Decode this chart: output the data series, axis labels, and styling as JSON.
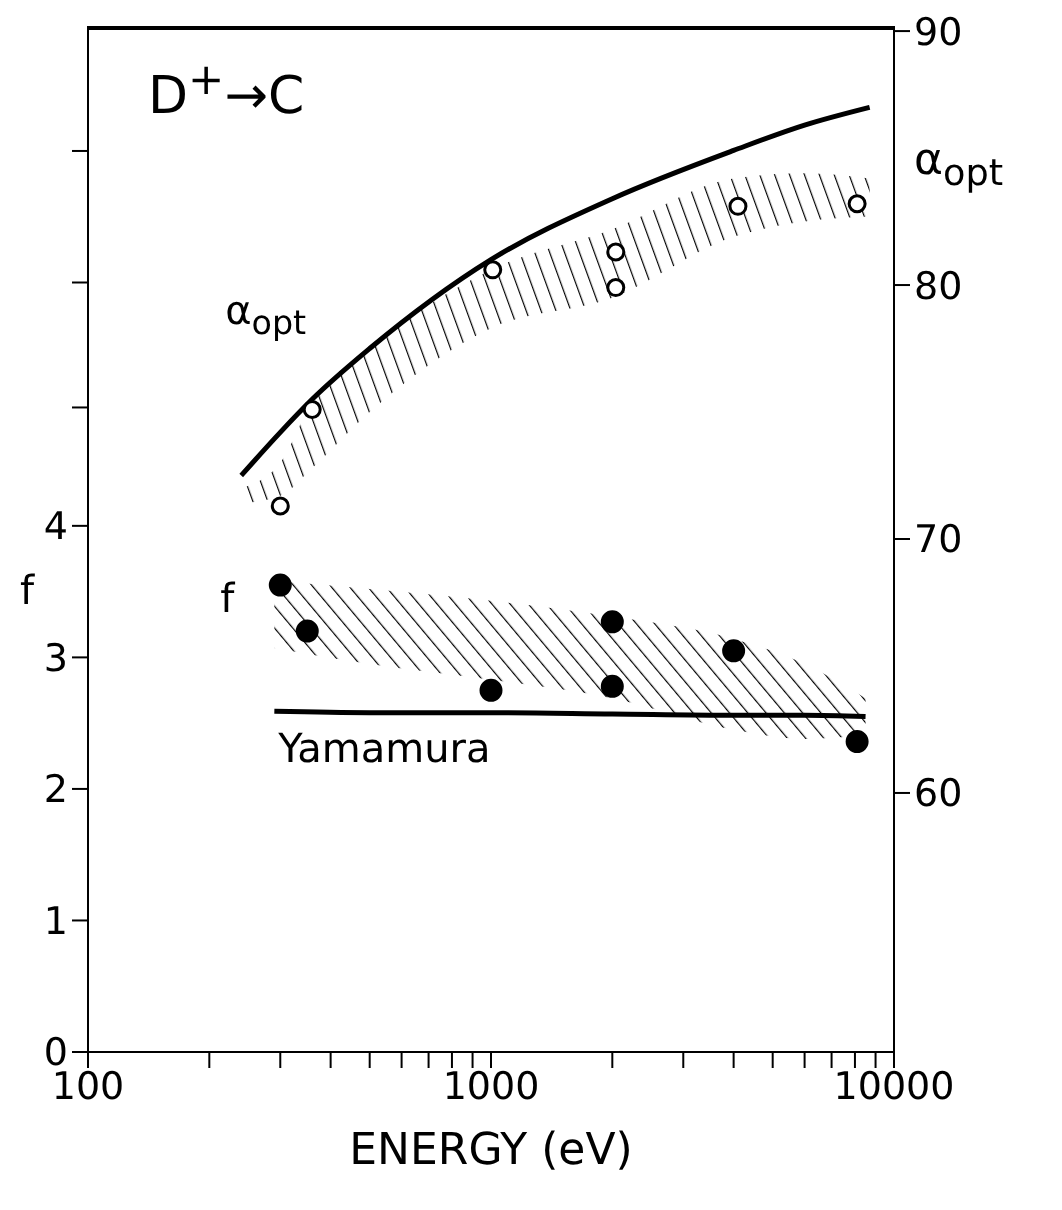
{
  "chart_data": {
    "type": "line",
    "title": "D$^{+}$→C",
    "xlabel": "ENERGY (eV)",
    "ylabel": "f",
    "y2label": "α$_{opt}$",
    "log": "x",
    "xlim": [
      100,
      10000
    ],
    "xticks": [
      100,
      {
        "value": 200,
        "label": null
      },
      {
        "value": 300,
        "label": null
      },
      {
        "value": 400,
        "label": null
      },
      {
        "value": 500,
        "label": null
      },
      {
        "value": 600,
        "label": null
      },
      {
        "value": 700,
        "label": null
      },
      {
        "value": 800,
        "label": null
      },
      {
        "value": 900,
        "label": null
      },
      1000,
      {
        "value": 2000,
        "label": null
      },
      {
        "value": 3000,
        "label": null
      },
      {
        "value": 4000,
        "label": null
      },
      {
        "value": 5000,
        "label": null
      },
      {
        "value": 6000,
        "label": null
      },
      {
        "value": 7000,
        "label": null
      },
      {
        "value": 8000,
        "label": null
      },
      {
        "value": 9000,
        "label": null
      },
      10000
    ],
    "ylim": [
      0,
      7.8
    ],
    "yticks": [
      0,
      1,
      2,
      3,
      4,
      {
        "value": 4.9,
        "label": null
      },
      {
        "value": 5.85,
        "label": null
      },
      {
        "value": 6.85,
        "label": null
      }
    ],
    "y2lim": [
      49.8,
      90.2
    ],
    "y2ticks": [
      60,
      70,
      80,
      90
    ],
    "series": [
      {
        "name": "α$_{opt}$",
        "axis": "y2",
        "color": "#000000",
        "marker": "none",
        "x": [
          240,
          300,
          360,
          500,
          1000,
          2000,
          4000,
          6000,
          8700
        ],
        "values": [
          72.5,
          74.2,
          75.5,
          77.5,
          81.0,
          83.4,
          85.3,
          86.3,
          87.0
        ],
        "lower": [
          71.4,
          71.7,
          72.8,
          75.0,
          78.3,
          79.5,
          81.9,
          82.5,
          82.7
        ],
        "upper": [
          72.0,
          73.0,
          75.4,
          77.5,
          80.6,
          82.2,
          84.2,
          84.4,
          84.2
        ]
      },
      {
        "type": "scatter",
        "axis": "y2",
        "color": "#000000",
        "marker": "circle",
        "x": [
          300,
          360,
          1010,
          2040,
          2040,
          4100,
          8100
        ],
        "values": [
          71.3,
          75.1,
          80.6,
          81.3,
          79.9,
          83.1,
          83.2
        ]
      },
      {
        "name": "Yamamura",
        "color": "#000000",
        "marker": "none",
        "x": [
          290,
          500,
          1000,
          2000,
          4000,
          6000,
          8500
        ],
        "values": [
          2.59,
          2.58,
          2.58,
          2.57,
          2.56,
          2.56,
          2.55
        ],
        "lower": [
          3.07,
          2.95,
          2.83,
          2.69,
          2.45,
          2.38,
          2.41
        ],
        "upper": [
          3.58,
          3.52,
          3.43,
          3.31,
          3.14,
          2.95,
          2.69
        ]
      },
      {
        "type": "scatter",
        "name": "f",
        "color": "#000000",
        "marker": "circle",
        "x": [
          300,
          350,
          1000,
          2000,
          2000,
          4000,
          8100
        ],
        "values": [
          3.55,
          3.2,
          2.75,
          3.27,
          2.78,
          3.05,
          2.36
        ]
      }
    ]
  }
}
